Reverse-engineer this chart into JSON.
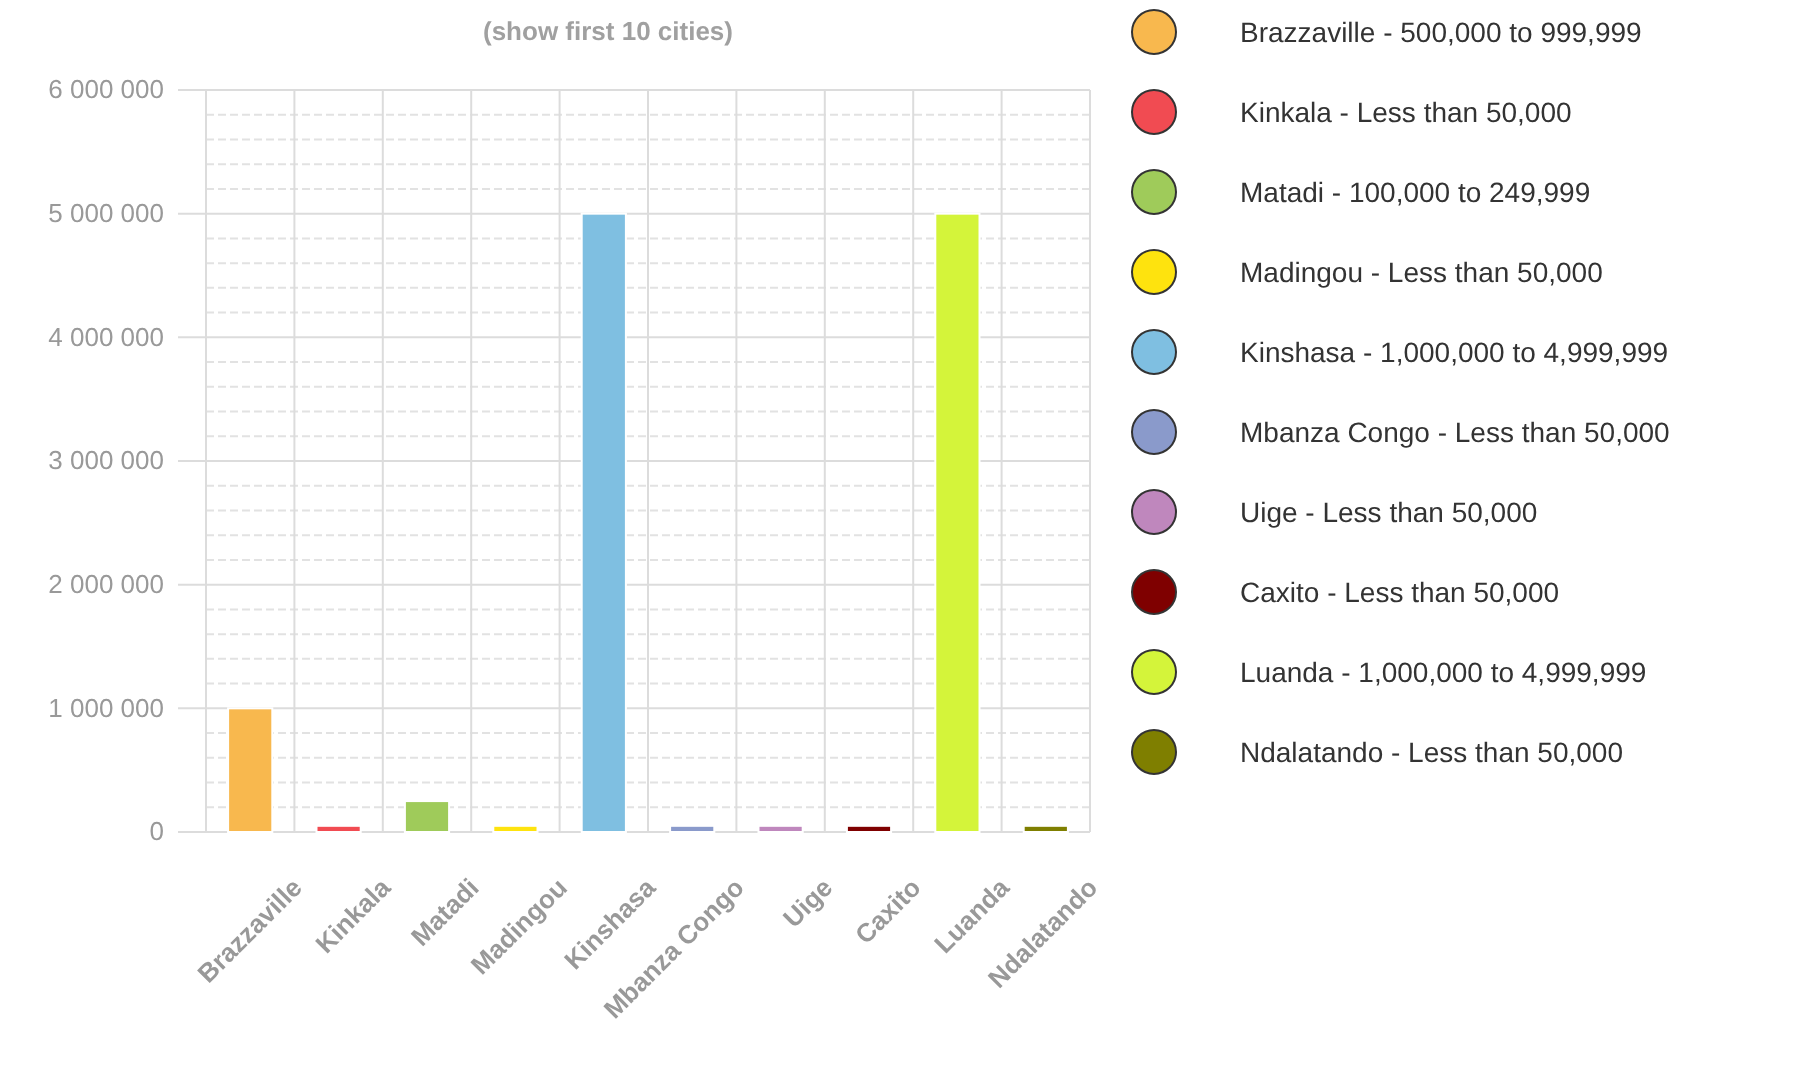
{
  "chart_data": {
    "type": "bar",
    "title": "(show first 10 cities)",
    "categories": [
      "Brazzaville",
      "Kinkala",
      "Matadi",
      "Madingou",
      "Kinshasa",
      "Mbanza Congo",
      "Uige",
      "Caxito",
      "Luanda",
      "Ndalatando"
    ],
    "series": [
      {
        "name": "Brazzaville - 500,000 to 999,999",
        "color": "#f8b84e",
        "values": [
          1000000,
          null,
          null,
          null,
          null,
          null,
          null,
          null,
          null,
          null
        ]
      },
      {
        "name": "Kinkala - Less than 50,000",
        "color": "#f14b52",
        "values": [
          null,
          50000,
          null,
          null,
          null,
          null,
          null,
          null,
          null,
          null
        ]
      },
      {
        "name": "Matadi - 100,000 to 249,999",
        "color": "#9fcb5a",
        "values": [
          null,
          null,
          250000,
          null,
          null,
          null,
          null,
          null,
          null,
          null
        ]
      },
      {
        "name": "Madingou - Less than 50,000",
        "color": "#fee30e",
        "values": [
          null,
          null,
          null,
          50000,
          null,
          null,
          null,
          null,
          null,
          null
        ]
      },
      {
        "name": "Kinshasa - 1,000,000 to 4,999,999",
        "color": "#7fbfe1",
        "values": [
          null,
          null,
          null,
          null,
          5000000,
          null,
          null,
          null,
          null,
          null
        ]
      },
      {
        "name": "Mbanza Congo - Less than 50,000",
        "color": "#8a9acb",
        "values": [
          null,
          null,
          null,
          null,
          null,
          50000,
          null,
          null,
          null,
          null
        ]
      },
      {
        "name": "Uige - Less than 50,000",
        "color": "#bf87bd",
        "values": [
          null,
          null,
          null,
          null,
          null,
          null,
          50000,
          null,
          null,
          null
        ]
      },
      {
        "name": "Caxito - Less than 50,000",
        "color": "#7f0000",
        "values": [
          null,
          null,
          null,
          null,
          null,
          null,
          null,
          50000,
          null,
          null
        ]
      },
      {
        "name": "Luanda - 1,000,000 to 4,999,999",
        "color": "#d4f43a",
        "values": [
          null,
          null,
          null,
          null,
          null,
          null,
          null,
          null,
          5000000,
          null
        ]
      },
      {
        "name": "Ndalatando - Less than 50,000",
        "color": "#7f7f00",
        "values": [
          null,
          null,
          null,
          null,
          null,
          null,
          null,
          null,
          null,
          50000
        ]
      }
    ],
    "ylim": [
      0,
      6000000
    ],
    "yticks": [
      0,
      {
        "value": 1000000,
        "label": "1 000 000"
      },
      {
        "value": 2000000,
        "label": "2 000 000"
      },
      {
        "value": 3000000,
        "label": "3 000 000"
      },
      {
        "value": 4000000,
        "label": "4 000 000"
      },
      {
        "value": 5000000,
        "label": "5 000 000"
      },
      {
        "value": 6000000,
        "label": "6 000 000"
      }
    ],
    "grid": true,
    "legend": "right"
  }
}
